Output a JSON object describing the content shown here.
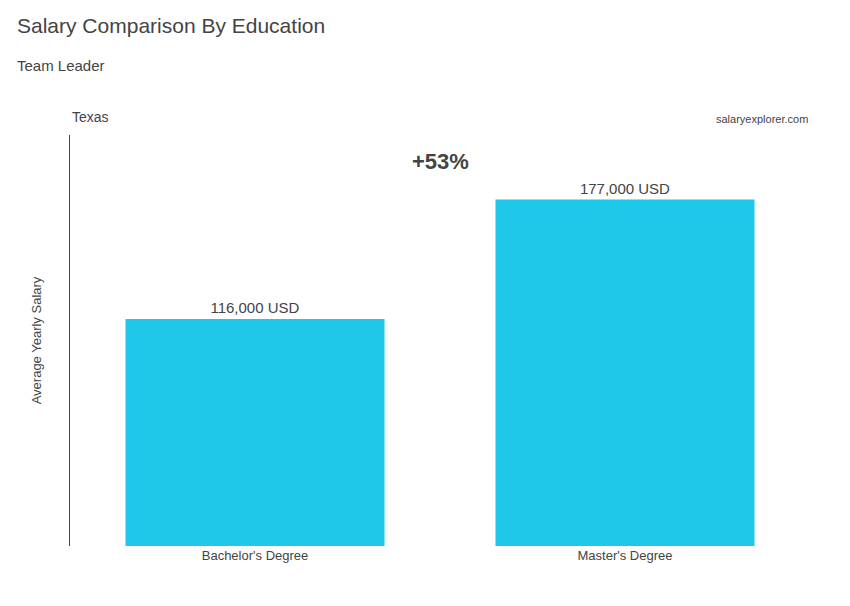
{
  "chart_data": {
    "type": "bar",
    "title": "Salary Comparison By Education",
    "subtitle": "Team Leader",
    "annotations": [
      "Texas",
      "+53%",
      "salaryexplorer.com"
    ],
    "ylabel": "Average Yearly Salary",
    "categories": [
      "Bachelor's Degree",
      "Master's Degree"
    ],
    "values": [
      116000,
      177000
    ],
    "value_labels": [
      "116,000 USD",
      "177,000 USD"
    ],
    "data_labels": true,
    "color": "#1EC8E8",
    "ylim": [
      0,
      210000
    ],
    "tick_labels": "x",
    "grid": false
  }
}
